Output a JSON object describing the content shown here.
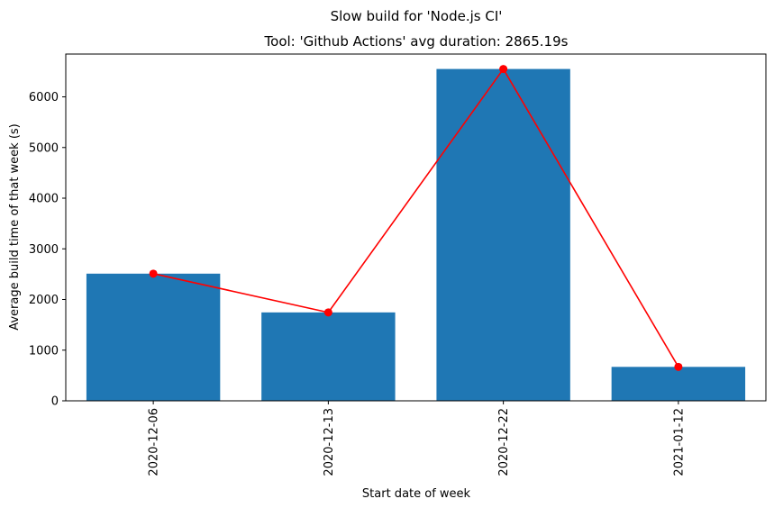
{
  "chart_data": {
    "type": "bar",
    "suptitle": "Slow build for 'Node.js CI'",
    "title": "Tool: 'Github Actions' avg duration: 2865.19s",
    "xlabel": "Start date of week",
    "ylabel": "Average build time of that week (s)",
    "categories": [
      "2020-12-06",
      "2020-12-13",
      "2020-12-22",
      "2021-01-12"
    ],
    "values": [
      2510,
      1745,
      6550,
      670
    ],
    "ylim": [
      0,
      6845
    ],
    "yticks": [
      0,
      1000,
      2000,
      3000,
      4000,
      5000,
      6000
    ],
    "bar_color": "#1f77b4",
    "line_color": "#ff0000",
    "line_overlay": true,
    "grid": false
  }
}
